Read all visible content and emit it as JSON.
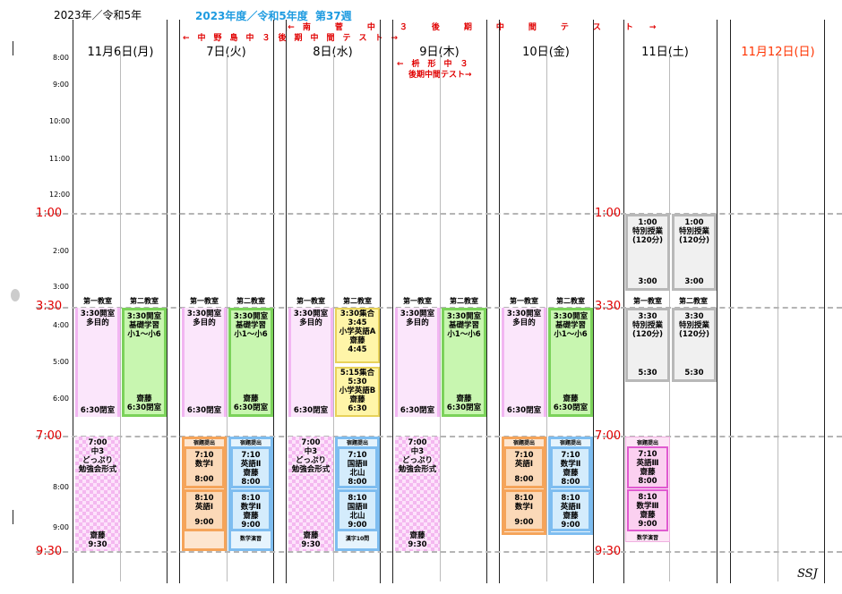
{
  "header": {
    "year": "2023年／令和5年",
    "fiscal": "2023年度／令和5年度",
    "week": "第37週",
    "signature": "SSJ",
    "notices": [
      "|←　南　　　菅　　　中　　　３　　　後　　　期　　　中　　　間　　　テ　　　ス　　　ト　　→",
      "←　中　野　島　中　３　後　期　中　間　テ　ス　ト　→",
      "←　枡　形　中　３",
      "後期中間テスト→"
    ]
  },
  "days": [
    "11月6日(月)",
    "7日(火)",
    "8日(水)",
    "9日(木)",
    "10日(金)",
    "11日(土)",
    "11月12日(日)"
  ],
  "hours": [
    "8:00",
    "9:00",
    "10:00",
    "11:00",
    "12:00",
    "2:00",
    "3:00",
    "4:00",
    "5:00",
    "6:00",
    "8:00",
    "9:00"
  ],
  "big_times": [
    "1:00",
    "3:30",
    "7:00",
    "9:30"
  ],
  "rooms": {
    "r1": "第一教室",
    "r2": "第二教室"
  },
  "common": {
    "open": "3:30開室",
    "multi": "多目的",
    "close": "6:30閉室",
    "basic1": "基礎学習",
    "basic2": "小1～小6",
    "teacher": "齋藤",
    "close2": "6:30閉室",
    "assign": "宿題提出",
    "m7": "7:00",
    "m930": "9:30",
    "c3": "中3",
    "donburi": "どっぷり",
    "benkyo": "勉強会形式",
    "t710": "7:10",
    "t800": "8:00",
    "t810": "8:10",
    "t900": "9:00",
    "math1": "数学Ⅰ",
    "eng1": "英語Ⅰ",
    "eng2": "英語Ⅱ",
    "math2": "数学Ⅱ",
    "kokugo2": "国語Ⅱ",
    "kitayama": "北山",
    "math_practice": "数学演習",
    "kanji": "漢字10問",
    "eng3": "英語Ⅲ",
    "math3": "数学Ⅲ",
    "special": "特別授業",
    "min120": "(120分)",
    "t100": "1:00",
    "t300": "3:00",
    "t330": "3:30",
    "t530": "5:30"
  },
  "wed_yellow": {
    "gather1": "3:30集合",
    "s1": "3:45",
    "subj1": "小学英語A",
    "e1": "4:45",
    "gather2": "5:15集合",
    "s2": "5:30",
    "subj2": "小学英語B",
    "e2": "6:30"
  },
  "colors": {
    "accent_red": "#e00000",
    "fiscal_blue": "#1e9be0"
  }
}
